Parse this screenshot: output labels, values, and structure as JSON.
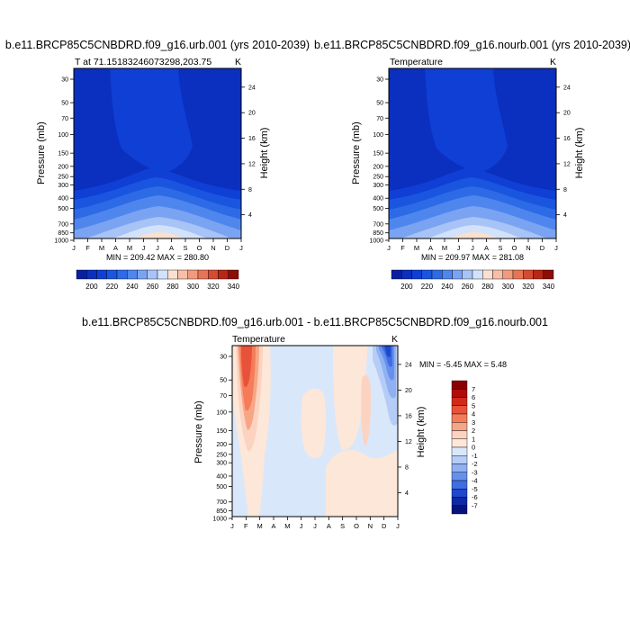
{
  "panels": [
    {
      "title": "b.e11.BRCP85C5CNBDRD.f09_g16.urb.001 (yrs 2010-2039)",
      "left_label": "T at 71.15183246073298,203.75",
      "unit": "K",
      "ylabel": "Pressure (mb)",
      "ylabel_right": "Height (km)",
      "minmax": "MIN = 209.42 MAX = 280.80"
    },
    {
      "title": "b.e11.BRCP85C5CNBDRD.f09_g16.nourb.001 (yrs 2010-2039)",
      "left_label": "Temperature",
      "unit": "K",
      "ylabel": "Pressure (mb)",
      "ylabel_right": "Height (km)",
      "minmax": "MIN = 209.97 MAX = 281.08"
    },
    {
      "title": "b.e11.BRCP85C5CNBDRD.f09_g16.urb.001 - b.e11.BRCP85C5CNBDRD.f09_g16.nourb.001",
      "left_label": "Temperature",
      "unit": "K",
      "ylabel": "Pressure (mb)",
      "ylabel_right": "Height (km)",
      "minmax": "MIN =  -5.45 MAX =   5.48"
    }
  ],
  "chart_data": [
    {
      "type": "heatmap",
      "title": "b.e11.BRCP85C5CNBDRD.f09_g16.urb.001 (yrs 2010-2039)",
      "x_ticks": [
        "J",
        "F",
        "M",
        "A",
        "M",
        "J",
        "J",
        "A",
        "S",
        "O",
        "N",
        "D",
        "J"
      ],
      "y_ticks": [
        "30",
        "50",
        "70",
        "100",
        "150",
        "200",
        "250",
        "300",
        "400",
        "500",
        "700",
        "850",
        "1000"
      ],
      "y_right_ticks": [
        "24",
        "20",
        "16",
        "12",
        "8",
        "4"
      ],
      "legend_labels": [
        "200",
        "220",
        "240",
        "260",
        "280",
        "300",
        "320",
        "340"
      ],
      "min": 209.42,
      "max": 280.8
    },
    {
      "type": "heatmap",
      "title": "b.e11.BRCP85C5CNBDRD.f09_g16.nourb.001 (yrs 2010-2039)",
      "x_ticks": [
        "J",
        "F",
        "M",
        "A",
        "M",
        "J",
        "J",
        "A",
        "S",
        "O",
        "N",
        "D",
        "J"
      ],
      "y_ticks": [
        "30",
        "50",
        "70",
        "100",
        "150",
        "200",
        "250",
        "300",
        "400",
        "500",
        "700",
        "850",
        "1000"
      ],
      "y_right_ticks": [
        "24",
        "20",
        "16",
        "12",
        "8",
        "4"
      ],
      "legend_labels": [
        "200",
        "220",
        "240",
        "260",
        "280",
        "300",
        "320",
        "340"
      ],
      "min": 209.97,
      "max": 281.08
    },
    {
      "type": "heatmap",
      "title": "b.e11.BRCP85C5CNBDRD.f09_g16.urb.001 - b.e11.BRCP85C5CNBDRD.f09_g16.nourb.001",
      "x_ticks": [
        "J",
        "F",
        "M",
        "A",
        "M",
        "J",
        "J",
        "A",
        "S",
        "O",
        "N",
        "D",
        "J"
      ],
      "y_ticks": [
        "30",
        "50",
        "70",
        "100",
        "150",
        "200",
        "250",
        "300",
        "400",
        "500",
        "700",
        "850",
        "1000"
      ],
      "y_right_ticks": [
        "24",
        "20",
        "16",
        "12",
        "8",
        "4"
      ],
      "legend_labels": [
        "7",
        "6",
        "5",
        "4",
        "3",
        "2",
        "1",
        "0",
        "-1",
        "-2",
        "-3",
        "-4",
        "-5",
        "-6",
        "-7"
      ],
      "min": -5.45,
      "max": 5.48
    }
  ],
  "colors": {
    "temp_scale": [
      "#0a1fa0",
      "#0b2fbe",
      "#0f3fd4",
      "#1a55e0",
      "#2d6ae6",
      "#4f86ee",
      "#7aa3f2",
      "#a8c3f6",
      "#d2e2fb",
      "#fae0d0",
      "#f6bfa6",
      "#f09b7d",
      "#e57556",
      "#d44b33",
      "#b82617",
      "#8c0d05"
    ],
    "diff_scale": [
      "#8b0000",
      "#b00d0a",
      "#d02a1a",
      "#e9523a",
      "#f47c5b",
      "#f8a585",
      "#fbd3c0",
      "#fde7d9",
      "#d9e7fb",
      "#b5cdf6",
      "#8fb1f1",
      "#6690ec",
      "#3f6de4",
      "#2048cc",
      "#0e28a6",
      "#07127d"
    ]
  }
}
